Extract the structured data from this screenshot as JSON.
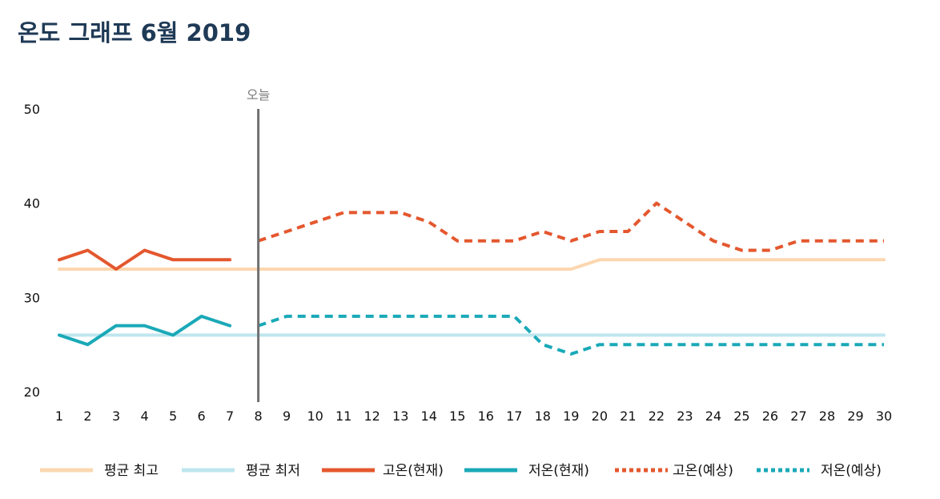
{
  "title": "온도 그래프 6월 2019",
  "colors": {
    "avg_high": "#fbd7b0",
    "avg_low": "#bfe6ee",
    "high": "#e4572e",
    "low": "#1aa9b8",
    "today_line": "#707070"
  },
  "chart_data": {
    "type": "line",
    "title": "온도 그래프 6월 2019",
    "x": [
      1,
      2,
      3,
      4,
      5,
      6,
      7,
      8,
      9,
      10,
      11,
      12,
      13,
      14,
      15,
      16,
      17,
      18,
      19,
      20,
      21,
      22,
      23,
      24,
      25,
      26,
      27,
      28,
      29,
      30
    ],
    "ylim": [
      20,
      50
    ],
    "yticks": [
      20,
      30,
      40,
      50
    ],
    "grid": false,
    "legend_position": "bottom",
    "today": {
      "x": 8,
      "label": "오늘"
    },
    "series": [
      {
        "name": "평균 최고",
        "style": "solid",
        "color": "#fbd7b0",
        "x": [
          1,
          2,
          3,
          4,
          5,
          6,
          7,
          8,
          9,
          10,
          11,
          12,
          13,
          14,
          15,
          16,
          17,
          18,
          19,
          20,
          21,
          22,
          23,
          24,
          25,
          26,
          27,
          28,
          29,
          30
        ],
        "values": [
          33,
          33,
          33,
          33,
          33,
          33,
          33,
          33,
          33,
          33,
          33,
          33,
          33,
          33,
          33,
          33,
          33,
          33,
          33,
          34,
          34,
          34,
          34,
          34,
          34,
          34,
          34,
          34,
          34,
          34
        ]
      },
      {
        "name": "평균 최저",
        "style": "solid",
        "color": "#bfe6ee",
        "x": [
          1,
          2,
          3,
          4,
          5,
          6,
          7,
          8,
          9,
          10,
          11,
          12,
          13,
          14,
          15,
          16,
          17,
          18,
          19,
          20,
          21,
          22,
          23,
          24,
          25,
          26,
          27,
          28,
          29,
          30
        ],
        "values": [
          26,
          26,
          26,
          26,
          26,
          26,
          26,
          26,
          26,
          26,
          26,
          26,
          26,
          26,
          26,
          26,
          26,
          26,
          26,
          26,
          26,
          26,
          26,
          26,
          26,
          26,
          26,
          26,
          26,
          26
        ]
      },
      {
        "name": "고온(현재)",
        "style": "solid",
        "color": "#e4572e",
        "x": [
          1,
          2,
          3,
          4,
          5,
          6,
          7
        ],
        "values": [
          34,
          35,
          33,
          35,
          34,
          34,
          34
        ]
      },
      {
        "name": "저온(현재)",
        "style": "solid",
        "color": "#1aa9b8",
        "x": [
          1,
          2,
          3,
          4,
          5,
          6,
          7
        ],
        "values": [
          26,
          25,
          27,
          27,
          26,
          28,
          27
        ]
      },
      {
        "name": "고온(예상)",
        "style": "dashed",
        "color": "#e4572e",
        "x": [
          8,
          9,
          10,
          11,
          12,
          13,
          14,
          15,
          16,
          17,
          18,
          19,
          20,
          21,
          22,
          23,
          24,
          25,
          26,
          27,
          28,
          29,
          30
        ],
        "values": [
          36,
          37,
          38,
          39,
          39,
          39,
          38,
          36,
          36,
          36,
          37,
          36,
          37,
          37,
          40,
          38,
          36,
          35,
          35,
          36,
          36,
          36,
          36
        ]
      },
      {
        "name": "저온(예상)",
        "style": "dashed",
        "color": "#1aa9b8",
        "x": [
          8,
          9,
          10,
          11,
          12,
          13,
          14,
          15,
          16,
          17,
          18,
          19,
          20,
          21,
          22,
          23,
          24,
          25,
          26,
          27,
          28,
          29,
          30
        ],
        "values": [
          27,
          28,
          28,
          28,
          28,
          28,
          28,
          28,
          28,
          28,
          25,
          24,
          25,
          25,
          25,
          25,
          25,
          25,
          25,
          25,
          25,
          25,
          25
        ]
      }
    ]
  }
}
